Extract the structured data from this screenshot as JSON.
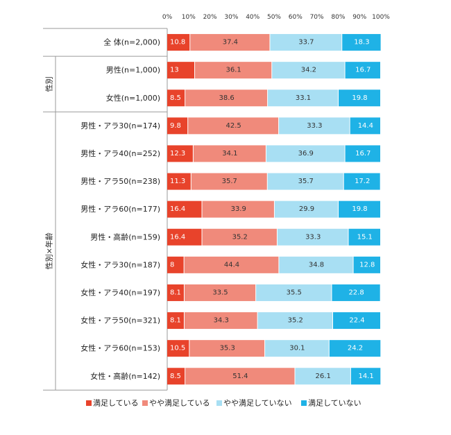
{
  "chart_data": {
    "type": "bar",
    "orientation": "horizontal",
    "stacked": true,
    "x_ticks": [
      "0%",
      "10%",
      "20%",
      "30%",
      "40%",
      "50%",
      "60%",
      "70%",
      "80%",
      "90%",
      "100%"
    ],
    "xlim": [
      0,
      100
    ],
    "grid": false,
    "legend_position": "bottom",
    "groups": [
      {
        "label": "",
        "rows": [
          0
        ]
      },
      {
        "label": "性別",
        "rows": [
          1,
          2
        ]
      },
      {
        "label": "性別×年齢",
        "rows": [
          3,
          4,
          5,
          6,
          7,
          8,
          9,
          10,
          11,
          12
        ]
      }
    ],
    "categories": [
      "全 体(n=2,000)",
      "男性(n=1,000)",
      "女性(n=1,000)",
      "男性・アラ30(n=174)",
      "男性・アラ40(n=252)",
      "男性・アラ50(n=238)",
      "男性・アラ60(n=177)",
      "男性・高齢(n=159)",
      "女性・アラ30(n=187)",
      "女性・アラ40(n=197)",
      "女性・アラ50(n=321)",
      "女性・アラ60(n=153)",
      "女性・高齢(n=142)"
    ],
    "series": [
      {
        "name": "満足している",
        "color": "#e8432b",
        "values": [
          10.8,
          13.0,
          8.5,
          9.8,
          12.3,
          11.3,
          16.4,
          16.4,
          8.0,
          8.1,
          8.1,
          10.5,
          8.5
        ]
      },
      {
        "name": "やや満足している",
        "color": "#f08a7b",
        "values": [
          37.4,
          36.1,
          38.6,
          42.5,
          34.1,
          35.7,
          33.9,
          35.2,
          44.4,
          33.5,
          34.3,
          35.3,
          51.4
        ]
      },
      {
        "name": "やや満足していない",
        "color": "#a8dff3",
        "values": [
          33.7,
          34.2,
          33.1,
          33.3,
          36.9,
          35.7,
          29.9,
          33.3,
          34.8,
          35.5,
          35.2,
          30.1,
          26.1
        ]
      },
      {
        "name": "満足していない",
        "color": "#1fb2e6",
        "values": [
          18.3,
          16.7,
          19.8,
          14.4,
          16.7,
          17.2,
          19.8,
          15.1,
          12.8,
          22.8,
          22.4,
          24.2,
          14.1
        ]
      }
    ],
    "label_colors": [
      "#ffffff",
      "#333333",
      "#333333",
      "#ffffff"
    ]
  }
}
